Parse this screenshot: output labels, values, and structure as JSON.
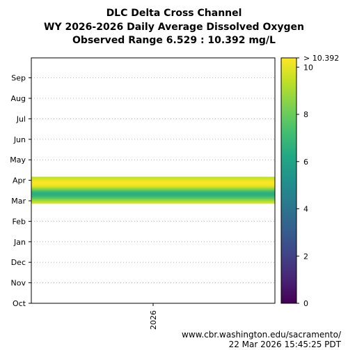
{
  "header": {
    "title_line1": "DLC Delta Cross Channel",
    "title_line2": "WY 2026-2026 Daily Average Dissolved Oxygen",
    "title_line3": "Observed Range 6.529 : 10.392 mg/L"
  },
  "footer": {
    "source": "www.cbr.washington.edu/sacramento/",
    "timestamp": "22 Mar 2026 15:45:25 PDT"
  },
  "chart_data": {
    "type": "heatmap",
    "title": "DLC Delta Cross Channel",
    "subtitle": "WY 2026-2026 Daily Average Dissolved Oxygen",
    "x": {
      "categories": [
        "2026"
      ]
    },
    "y": {
      "tick_labels": [
        "Oct",
        "Nov",
        "Dec",
        "Jan",
        "Feb",
        "Mar",
        "Apr",
        "May",
        "Jun",
        "Jul",
        "Aug",
        "Sep"
      ],
      "range_months": [
        0,
        11.5
      ]
    },
    "grid": true,
    "observed_range": [
      6.529,
      10.392
    ],
    "units": "mg/L",
    "colorbar": {
      "colormap": "viridis",
      "min": 0,
      "max": 10.392,
      "ticks": [
        0,
        2,
        4,
        6,
        8,
        10
      ],
      "top_label": "> 10.392"
    },
    "values": [
      {
        "month_pos": 4.9,
        "value": 9.9
      },
      {
        "month_pos": 4.95,
        "value": 9.6
      },
      {
        "month_pos": 5.0,
        "value": 9.2
      },
      {
        "month_pos": 5.05,
        "value": 8.7
      },
      {
        "month_pos": 5.1,
        "value": 8.2
      },
      {
        "month_pos": 5.15,
        "value": 7.7
      },
      {
        "month_pos": 5.2,
        "value": 7.3
      },
      {
        "month_pos": 5.25,
        "value": 6.9
      },
      {
        "month_pos": 5.3,
        "value": 6.6
      },
      {
        "month_pos": 5.35,
        "value": 6.53
      },
      {
        "month_pos": 5.4,
        "value": 6.6
      },
      {
        "month_pos": 5.45,
        "value": 6.9
      },
      {
        "month_pos": 5.5,
        "value": 7.4
      },
      {
        "month_pos": 5.55,
        "value": 8.0
      },
      {
        "month_pos": 5.6,
        "value": 8.6
      },
      {
        "month_pos": 5.65,
        "value": 9.1
      },
      {
        "month_pos": 5.7,
        "value": 9.6
      },
      {
        "month_pos": 5.75,
        "value": 10.0
      },
      {
        "month_pos": 5.8,
        "value": 10.2
      },
      {
        "month_pos": 5.85,
        "value": 10.3
      },
      {
        "month_pos": 5.9,
        "value": 10.392
      },
      {
        "month_pos": 5.95,
        "value": 10.3
      },
      {
        "month_pos": 6.0,
        "value": 10.1
      },
      {
        "month_pos": 6.05,
        "value": 9.9
      },
      {
        "month_pos": 6.1,
        "value": 9.7
      },
      {
        "month_pos": 6.15,
        "value": 9.5
      }
    ]
  }
}
